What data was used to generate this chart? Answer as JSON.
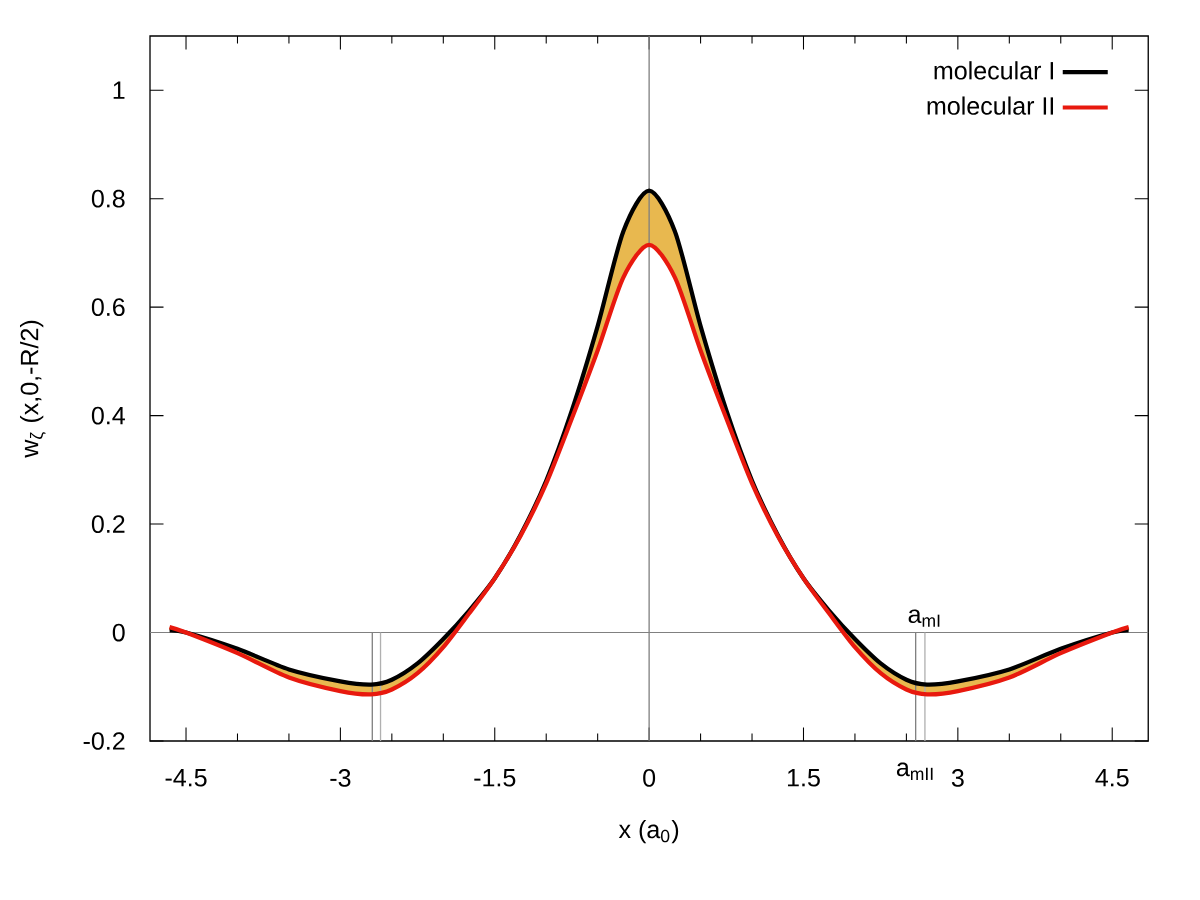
{
  "chart_data": {
    "type": "line",
    "xlabel": "x (a$_{0}$)",
    "ylabel": "w$_{ζ}$ (x,0,-R/2)",
    "x": [
      -4.66,
      -4.5,
      -4.0,
      -3.5,
      -3.0,
      -2.7,
      -2.5,
      -2.25,
      -2.0,
      -1.75,
      -1.5,
      -1.25,
      -1.0,
      -0.75,
      -0.5,
      -0.25,
      0,
      0.25,
      0.5,
      0.75,
      1.0,
      1.25,
      1.5,
      1.75,
      2.0,
      2.25,
      2.5,
      2.7,
      3.0,
      3.5,
      4.0,
      4.5,
      4.66
    ],
    "series": [
      {
        "name": "molecular I",
        "color": "#000000",
        "values": [
          0.004,
          0.0,
          -0.03,
          -0.068,
          -0.09,
          -0.096,
          -0.087,
          -0.057,
          -0.012,
          0.04,
          0.1,
          0.18,
          0.28,
          0.41,
          0.565,
          0.74,
          0.815,
          0.74,
          0.565,
          0.41,
          0.28,
          0.18,
          0.1,
          0.04,
          -0.012,
          -0.057,
          -0.087,
          -0.096,
          -0.09,
          -0.068,
          -0.03,
          0.0,
          0.004
        ],
        "lower": [
          0.01,
          0.0,
          -0.038,
          -0.083,
          -0.108,
          -0.114,
          -0.105,
          -0.075,
          -0.027,
          0.035,
          0.1,
          0.178,
          0.275,
          0.395,
          0.52,
          0.655,
          0.715,
          0.655,
          0.52,
          0.395,
          0.275,
          0.178,
          0.1,
          0.035,
          -0.027,
          -0.075,
          -0.105,
          -0.114,
          -0.108,
          -0.083,
          -0.038,
          0.0,
          0.01
        ],
        "upper": [
          0.004,
          0.0,
          -0.03,
          -0.068,
          -0.09,
          -0.096,
          -0.087,
          -0.057,
          -0.012,
          0.04,
          0.1,
          0.18,
          0.28,
          0.41,
          0.565,
          0.74,
          0.815,
          0.74,
          0.565,
          0.41,
          0.28,
          0.18,
          0.1,
          0.04,
          -0.012,
          -0.057,
          -0.087,
          -0.096,
          -0.09,
          -0.068,
          -0.03,
          0.0,
          0.004
        ]
      },
      {
        "name": "molecular II",
        "color": "#e8190e",
        "values": [
          0.01,
          0.0,
          -0.038,
          -0.083,
          -0.108,
          -0.114,
          -0.105,
          -0.075,
          -0.027,
          0.035,
          0.1,
          0.178,
          0.275,
          0.395,
          0.52,
          0.655,
          0.715,
          0.655,
          0.52,
          0.395,
          0.275,
          0.178,
          0.1,
          0.035,
          -0.027,
          -0.075,
          -0.105,
          -0.114,
          -0.108,
          -0.083,
          -0.038,
          0.0,
          0.01
        ]
      }
    ],
    "xlim": [
      -4.85,
      4.85
    ],
    "ylim": [
      -0.2,
      1.1
    ],
    "xticks": [
      -4.5,
      {
        "value": -4,
        "label": null
      },
      {
        "value": -3.5,
        "label": null
      },
      -3,
      {
        "value": -2.5,
        "label": null
      },
      {
        "value": -2,
        "label": null
      },
      -1.5,
      {
        "value": -1,
        "label": null
      },
      {
        "value": -0.5,
        "label": null
      },
      0,
      {
        "value": 0.5,
        "label": null
      },
      {
        "value": 1,
        "label": null
      },
      1.5,
      {
        "value": 2,
        "label": null
      },
      {
        "value": 2.5,
        "label": null
      },
      3,
      {
        "value": 3.5,
        "label": null
      },
      {
        "value": 4,
        "label": null
      },
      4.5
    ],
    "yticks": [
      {
        "value": -0.2,
        "label": "-0.2"
      },
      0,
      0.2,
      0.4,
      0.6,
      0.8,
      1
    ],
    "ref_lines": [
      {
        "axis": "x",
        "value": 0,
        "color": "#808080"
      },
      {
        "axis": "y",
        "value": 0,
        "color": "#808080"
      },
      {
        "axis": "x",
        "value": -2.69,
        "color": "#808080"
      },
      {
        "axis": "x",
        "value": -2.61,
        "color": "#b0b0b0"
      },
      {
        "axis": "x",
        "value": 2.68,
        "color": "#b0b0b0",
        "label": "a$_{mI}$"
      },
      {
        "axis": "x",
        "value": 2.59,
        "color": "#808080",
        "label": "a$_{mII}$"
      }
    ],
    "legend": "top right",
    "grid": false,
    "marker": "none",
    "line_style": "solid"
  }
}
